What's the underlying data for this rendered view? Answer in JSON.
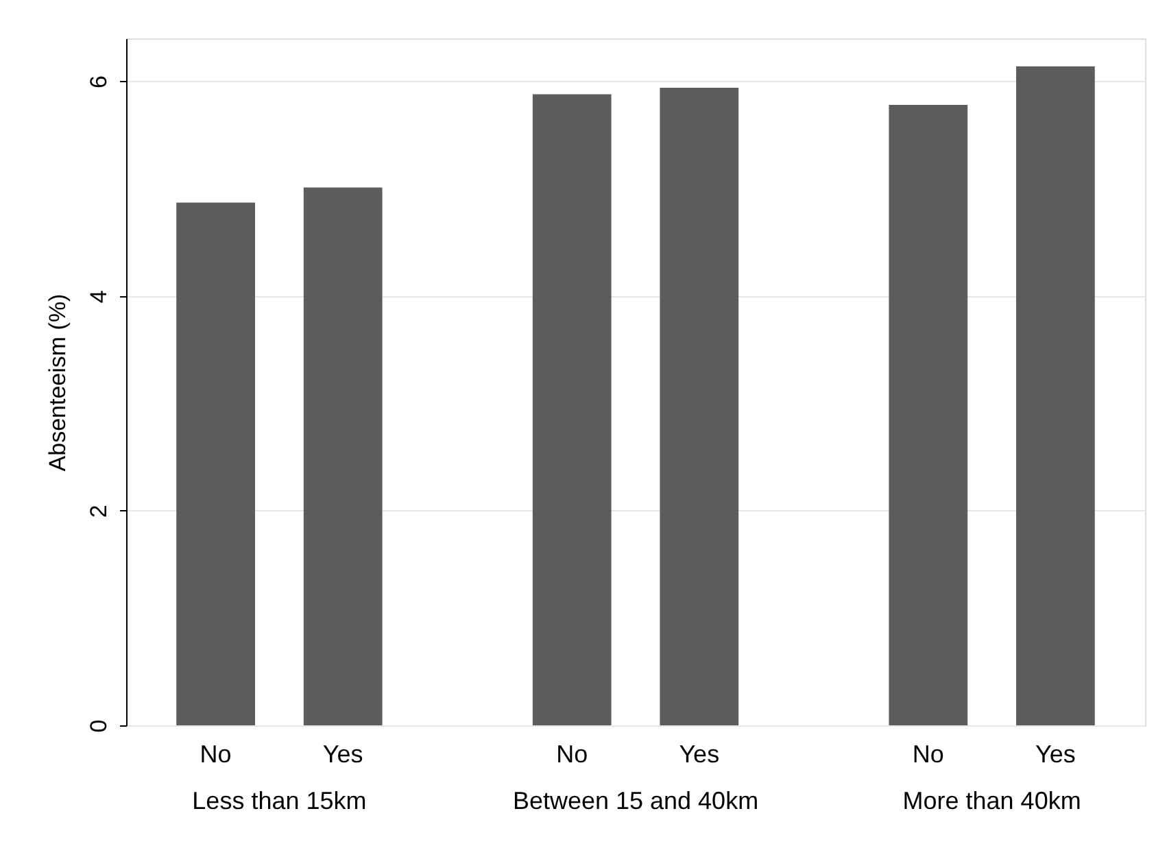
{
  "chart_data": {
    "type": "bar",
    "ylabel": "Absenteeism (%)",
    "categories": [
      "No",
      "Yes",
      "No",
      "Yes",
      "No",
      "Yes"
    ],
    "values": [
      4.87,
      5.01,
      5.88,
      5.94,
      5.78,
      6.14
    ],
    "color": "#5c5c5c",
    "annotations": [
      "Less than 15km",
      "Between 15 and 40km",
      "More than 40km"
    ],
    "ylim": [
      0,
      6.4
    ],
    "yticks": [
      0,
      2,
      4,
      6
    ],
    "grid": "y"
  }
}
